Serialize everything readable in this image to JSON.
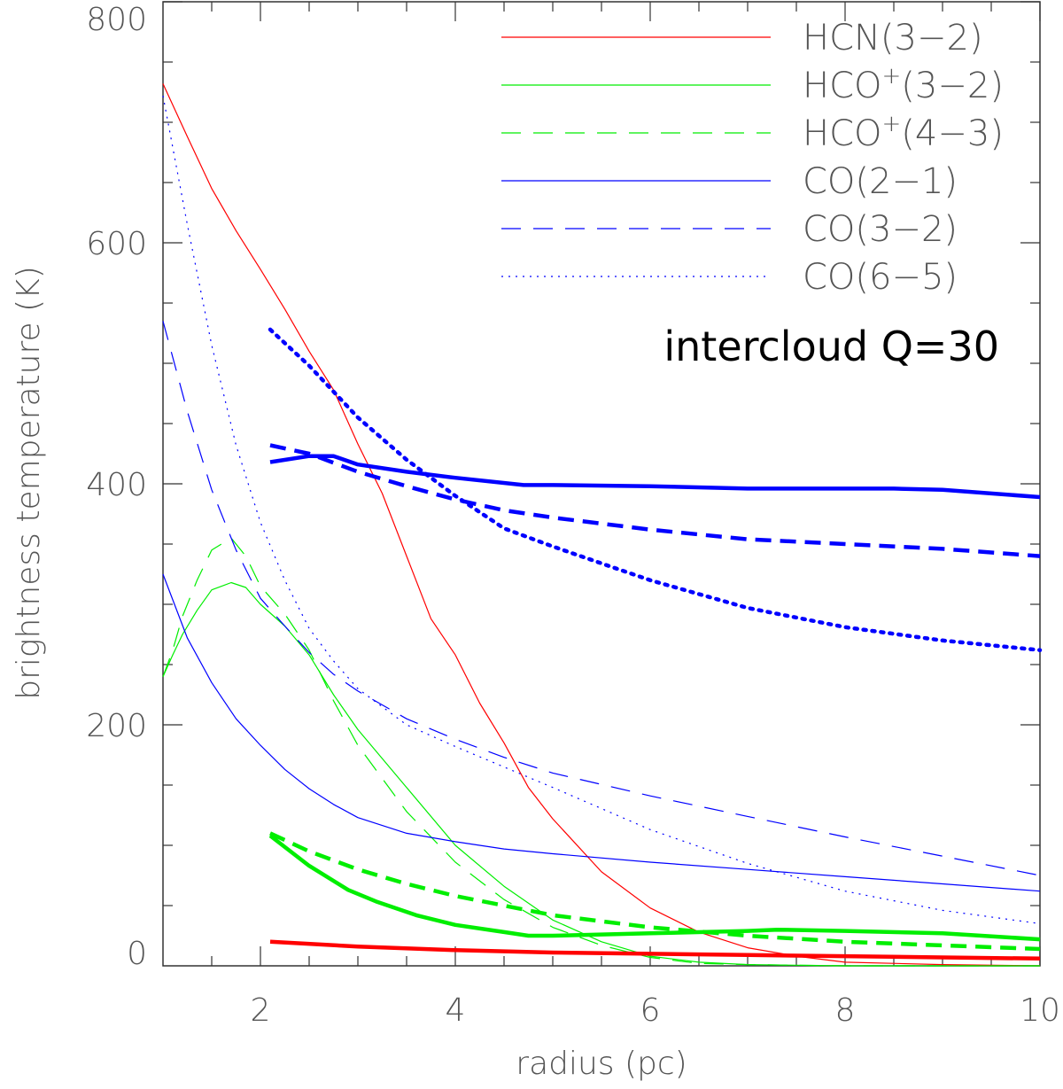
{
  "chart_data": {
    "type": "line",
    "title": "",
    "xlabel": "radius (pc)",
    "ylabel": "brightness temperature (K)",
    "xlim": [
      1,
      10
    ],
    "ylim": [
      0,
      800
    ],
    "x_ticks": [
      2,
      4,
      6,
      8,
      10
    ],
    "x_tick_labels": [
      "2",
      "4",
      "6",
      "8",
      "10"
    ],
    "y_ticks": [
      0,
      200,
      400,
      600,
      800
    ],
    "y_tick_labels": [
      "0",
      "200",
      "400",
      "600",
      "800"
    ],
    "annotation": "intercloud Q=30",
    "legend_position": "top-right",
    "legend": [
      {
        "label_main": "HCN(3−2)",
        "label_sup": "",
        "label_rest": "",
        "color": "#ff0000",
        "style": "solid"
      },
      {
        "label_main": "HCO",
        "label_sup": "+",
        "label_rest": "(3−2)",
        "color": "#00ee00",
        "style": "solid"
      },
      {
        "label_main": "HCO",
        "label_sup": "+",
        "label_rest": "(4−3)",
        "color": "#00ee00",
        "style": "dashed"
      },
      {
        "label_main": "CO(2−1)",
        "label_sup": "",
        "label_rest": "",
        "color": "#0000ff",
        "style": "solid"
      },
      {
        "label_main": "CO(3−2)",
        "label_sup": "",
        "label_rest": "",
        "color": "#0000ff",
        "style": "dashed"
      },
      {
        "label_main": "CO(6−5)",
        "label_sup": "",
        "label_rest": "",
        "color": "#0000ff",
        "style": "dotted"
      }
    ],
    "series": [
      {
        "id": "hcn32-thin",
        "color": "#ff0000",
        "style": "solid",
        "weight": "thin",
        "x": [
          1.0,
          1.25,
          1.5,
          1.75,
          2.0,
          2.25,
          2.5,
          2.75,
          3.0,
          3.25,
          3.5,
          3.75,
          4.0,
          4.25,
          4.5,
          4.75,
          5.0,
          5.5,
          6.0,
          6.5,
          7.0,
          7.5,
          8.0,
          9.0,
          10.0
        ],
        "y": [
          732,
          688,
          645,
          610,
          578,
          545,
          510,
          478,
          433,
          392,
          340,
          288,
          258,
          218,
          185,
          148,
          122,
          78,
          48,
          28,
          15,
          8,
          3,
          1,
          0
        ]
      },
      {
        "id": "hco32-thin",
        "color": "#00ee00",
        "style": "solid",
        "weight": "thin",
        "x": [
          1.0,
          1.1,
          1.2,
          1.35,
          1.5,
          1.7,
          1.85,
          2.0,
          2.25,
          2.5,
          2.75,
          3.0,
          3.5,
          4.0,
          4.5,
          5.0,
          5.5,
          6.0,
          6.5,
          7.0,
          8.0,
          9.0,
          10.0
        ],
        "y": [
          240,
          258,
          275,
          295,
          312,
          318,
          314,
          300,
          282,
          258,
          225,
          196,
          148,
          100,
          66,
          38,
          20,
          8,
          3,
          1,
          0,
          0,
          0
        ]
      },
      {
        "id": "hco43-thin",
        "color": "#00ee00",
        "style": "dashed",
        "weight": "thin",
        "x": [
          1.0,
          1.1,
          1.2,
          1.35,
          1.5,
          1.7,
          1.85,
          2.0,
          2.25,
          2.5,
          2.75,
          3.0,
          3.5,
          4.0,
          4.5,
          5.0,
          5.5,
          6.0,
          6.5,
          7.0,
          8.0,
          9.0,
          10.0
        ],
        "y": [
          240,
          262,
          290,
          320,
          345,
          355,
          340,
          315,
          292,
          262,
          220,
          183,
          128,
          86,
          55,
          32,
          17,
          7,
          2,
          1,
          0,
          0,
          0
        ]
      },
      {
        "id": "co21-thin",
        "color": "#0000ff",
        "style": "solid",
        "weight": "thin",
        "x": [
          1.0,
          1.25,
          1.5,
          1.75,
          2.0,
          2.25,
          2.5,
          2.75,
          3.0,
          3.5,
          4.0,
          4.5,
          5.0,
          6.0,
          7.0,
          8.0,
          9.0,
          10.0
        ],
        "y": [
          325,
          272,
          235,
          205,
          183,
          163,
          147,
          134,
          123,
          110,
          103,
          97,
          93,
          86,
          80,
          74,
          68,
          62
        ]
      },
      {
        "id": "co32-thin",
        "color": "#0000ff",
        "style": "dashed",
        "weight": "thin",
        "x": [
          1.0,
          1.25,
          1.5,
          1.75,
          2.0,
          2.25,
          2.5,
          2.75,
          3.0,
          3.5,
          4.0,
          4.5,
          5.0,
          6.0,
          7.0,
          8.0,
          9.0,
          10.0
        ],
        "y": [
          535,
          460,
          395,
          345,
          305,
          282,
          260,
          242,
          228,
          205,
          188,
          173,
          160,
          141,
          124,
          107,
          91,
          75
        ]
      },
      {
        "id": "co65-thin",
        "color": "#0000ff",
        "style": "dotted",
        "weight": "thin",
        "x": [
          1.0,
          1.25,
          1.5,
          1.75,
          2.0,
          2.25,
          2.5,
          2.75,
          3.0,
          3.5,
          4.0,
          4.5,
          5.0,
          6.0,
          7.0,
          8.0,
          9.0,
          10.0
        ],
        "y": [
          722,
          615,
          515,
          432,
          368,
          320,
          280,
          253,
          230,
          200,
          182,
          165,
          148,
          113,
          85,
          62,
          46,
          35
        ]
      },
      {
        "id": "hcn32-thick",
        "color": "#ff0000",
        "style": "solid",
        "weight": "thick",
        "x": [
          2.1,
          3.0,
          4.0,
          5.0,
          6.0,
          7.0,
          8.0,
          9.0,
          10.0
        ],
        "y": [
          20,
          16,
          13,
          11,
          10,
          9,
          8,
          7,
          6
        ]
      },
      {
        "id": "hco32-thick",
        "color": "#00ee00",
        "style": "solid",
        "weight": "thick",
        "x": [
          2.1,
          2.5,
          2.9,
          3.2,
          3.6,
          4.0,
          4.5,
          4.75,
          5.0,
          6.0,
          7.0,
          7.3,
          8.0,
          9.0,
          10.0
        ],
        "y": [
          108,
          83,
          63,
          53,
          42,
          34,
          28,
          25,
          25,
          27,
          29,
          30,
          29,
          27,
          22
        ]
      },
      {
        "id": "hco43-thick",
        "color": "#00ee00",
        "style": "dashed",
        "weight": "thick",
        "x": [
          2.1,
          2.5,
          3.0,
          3.5,
          4.0,
          4.5,
          5.0,
          6.0,
          7.0,
          8.0,
          9.0,
          10.0
        ],
        "y": [
          110,
          95,
          80,
          68,
          58,
          50,
          42,
          32,
          25,
          20,
          17,
          14
        ]
      },
      {
        "id": "co21-thick",
        "color": "#0000ff",
        "style": "solid",
        "weight": "thick",
        "x": [
          2.1,
          2.5,
          2.75,
          3.0,
          3.5,
          4.0,
          4.7,
          5.0,
          6.0,
          7.0,
          7.5,
          8.5,
          9.0,
          10.0
        ],
        "y": [
          418,
          423,
          423,
          416,
          410,
          405,
          399,
          399,
          398,
          396,
          396,
          396,
          395,
          389
        ]
      },
      {
        "id": "co32-thick",
        "color": "#0000ff",
        "style": "dashed",
        "weight": "thick",
        "x": [
          2.1,
          2.5,
          3.0,
          3.5,
          4.0,
          4.5,
          5.0,
          6.0,
          7.0,
          8.0,
          9.0,
          10.0
        ],
        "y": [
          432,
          425,
          410,
          398,
          387,
          378,
          372,
          362,
          354,
          350,
          346,
          340
        ]
      },
      {
        "id": "co65-thick",
        "color": "#0000ff",
        "style": "dotted",
        "weight": "thick",
        "x": [
          2.1,
          2.5,
          3.0,
          3.5,
          4.0,
          4.5,
          5.0,
          5.5,
          6.0,
          7.0,
          8.0,
          9.0,
          10.0
        ],
        "y": [
          528,
          498,
          455,
          420,
          390,
          363,
          348,
          334,
          320,
          297,
          281,
          270,
          262
        ]
      }
    ]
  }
}
